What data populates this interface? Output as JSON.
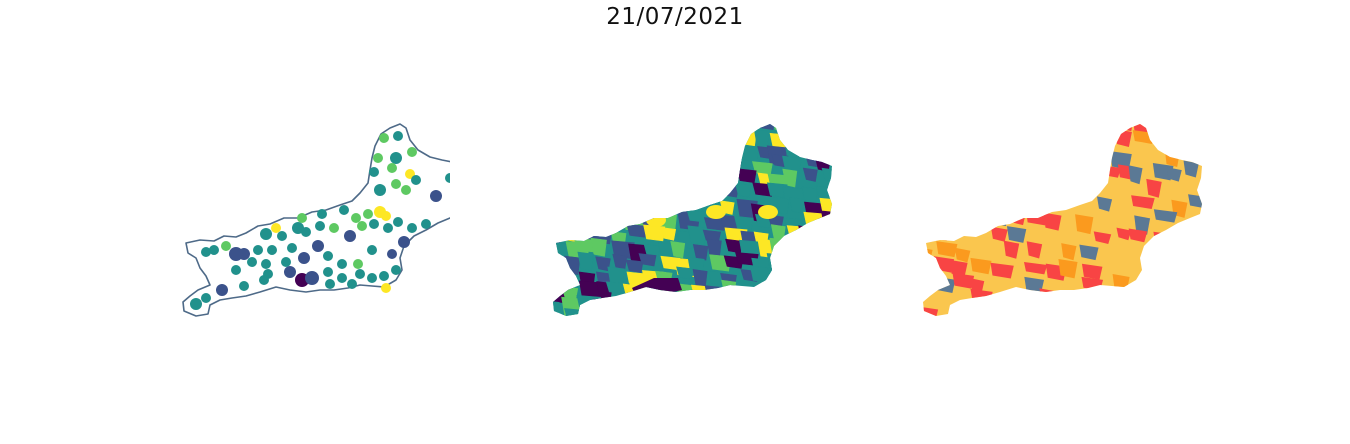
{
  "title": "21/07/2021",
  "colors": {
    "outline": "#4e6a88",
    "viridis": [
      "#440154",
      "#3b528b",
      "#21918c",
      "#5ec962",
      "#fde725"
    ],
    "categories": [
      "#fac64e",
      "#fb9a1e",
      "#f84444",
      "#5b7995"
    ]
  },
  "panels": [
    {
      "id": "points",
      "kind": "proportional-points"
    },
    {
      "id": "choropleth",
      "kind": "choropleth-viridis"
    },
    {
      "id": "categories",
      "kind": "choropleth-categorical"
    }
  ]
}
